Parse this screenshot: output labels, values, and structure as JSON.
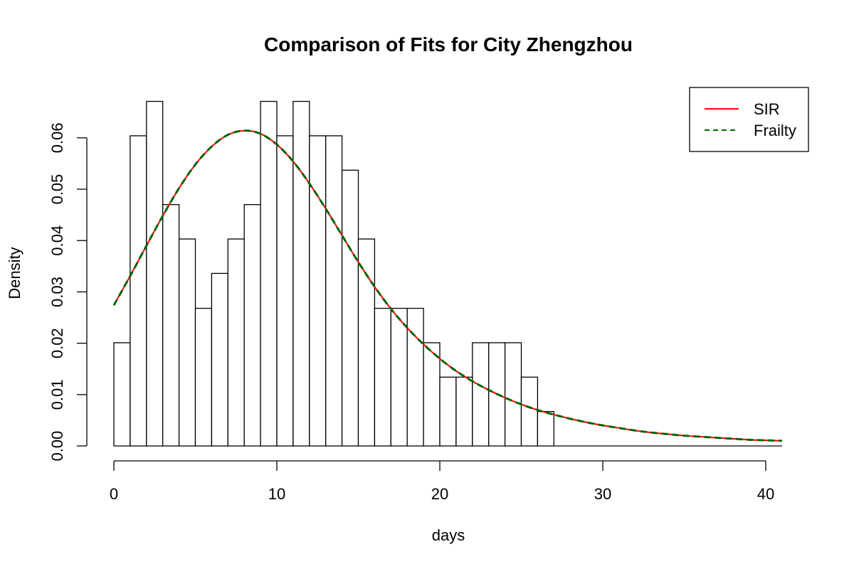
{
  "chart_data": {
    "type": "histogram",
    "title": "Comparison of Fits for City Zhengzhou",
    "xlabel": "days",
    "ylabel": "Density",
    "xlim": [
      0,
      41
    ],
    "ylim": [
      0,
      0.067
    ],
    "x_ticks": [
      0,
      10,
      20,
      30,
      40
    ],
    "x_tick_labels": [
      "0",
      "10",
      "20",
      "30",
      "40"
    ],
    "y_ticks": [
      0,
      0.01,
      0.02,
      0.03,
      0.04,
      0.05,
      0.06
    ],
    "y_tick_labels": [
      "0.00",
      "0.01",
      "0.02",
      "0.03",
      "0.04",
      "0.05",
      "0.06"
    ],
    "grid": false,
    "legend_position": "top-right",
    "histogram": {
      "bin_edges": [
        0,
        1,
        2,
        3,
        4,
        5,
        6,
        7,
        8,
        9,
        10,
        11,
        12,
        13,
        14,
        15,
        16,
        17,
        18,
        19,
        20,
        21,
        22,
        23,
        24,
        25,
        26,
        27,
        28,
        29,
        30,
        31,
        32,
        33,
        34,
        35,
        36,
        37,
        38,
        39,
        40,
        41
      ],
      "density": [
        0.0201,
        0.0604,
        0.0671,
        0.047,
        0.0403,
        0.0268,
        0.0336,
        0.0403,
        0.047,
        0.0671,
        0.0604,
        0.0671,
        0.0604,
        0.0604,
        0.0537,
        0.0403,
        0.0268,
        0.0268,
        0.0268,
        0.0201,
        0.0134,
        0.0134,
        0.0201,
        0.0201,
        0.0201,
        0.0134,
        0.0067,
        0,
        0,
        0,
        0,
        0,
        0,
        0,
        0,
        0,
        0,
        0,
        0,
        0,
        0
      ],
      "fill": "#ffffff",
      "stroke": "#000000"
    },
    "series": [
      {
        "name": "SIR",
        "color": "#ff0000",
        "line_style": "solid",
        "x": [
          0,
          1,
          2,
          3,
          4,
          5,
          6,
          7,
          8,
          9,
          10,
          11,
          12,
          13,
          14,
          15,
          16,
          17,
          18,
          19,
          20,
          21,
          22,
          23,
          24,
          25,
          26,
          27,
          28,
          29,
          30,
          31,
          32,
          33,
          34,
          35,
          36,
          37,
          38,
          39,
          40,
          41
        ],
        "y": [
          0.0274,
          0.0331,
          0.039,
          0.0448,
          0.0502,
          0.0548,
          0.0583,
          0.0606,
          0.0614,
          0.0608,
          0.0587,
          0.0554,
          0.0511,
          0.0462,
          0.041,
          0.0358,
          0.031,
          0.0267,
          0.023,
          0.0198,
          0.017,
          0.0146,
          0.0126,
          0.0109,
          0.0094,
          0.0081,
          0.007,
          0.0061,
          0.0053,
          0.0046,
          0.004,
          0.0035,
          0.003,
          0.0026,
          0.0023,
          0.002,
          0.0018,
          0.0016,
          0.0014,
          0.0012,
          0.0011,
          0.001
        ]
      },
      {
        "name": "Frailty",
        "color": "#006400",
        "line_style": "dashed",
        "x": [
          0,
          1,
          2,
          3,
          4,
          5,
          6,
          7,
          8,
          9,
          10,
          11,
          12,
          13,
          14,
          15,
          16,
          17,
          18,
          19,
          20,
          21,
          22,
          23,
          24,
          25,
          26,
          27,
          28,
          29,
          30,
          31,
          32,
          33,
          34,
          35,
          36,
          37,
          38,
          39,
          40,
          41
        ],
        "y": [
          0.0274,
          0.0331,
          0.039,
          0.0448,
          0.0502,
          0.0548,
          0.0583,
          0.0606,
          0.0614,
          0.0608,
          0.0587,
          0.0554,
          0.0511,
          0.0462,
          0.041,
          0.0358,
          0.031,
          0.0267,
          0.023,
          0.0198,
          0.017,
          0.0146,
          0.0126,
          0.0109,
          0.0094,
          0.0081,
          0.007,
          0.0061,
          0.0053,
          0.0046,
          0.004,
          0.0035,
          0.003,
          0.0026,
          0.0023,
          0.002,
          0.0018,
          0.0016,
          0.0014,
          0.0012,
          0.0011,
          0.001
        ]
      }
    ]
  }
}
